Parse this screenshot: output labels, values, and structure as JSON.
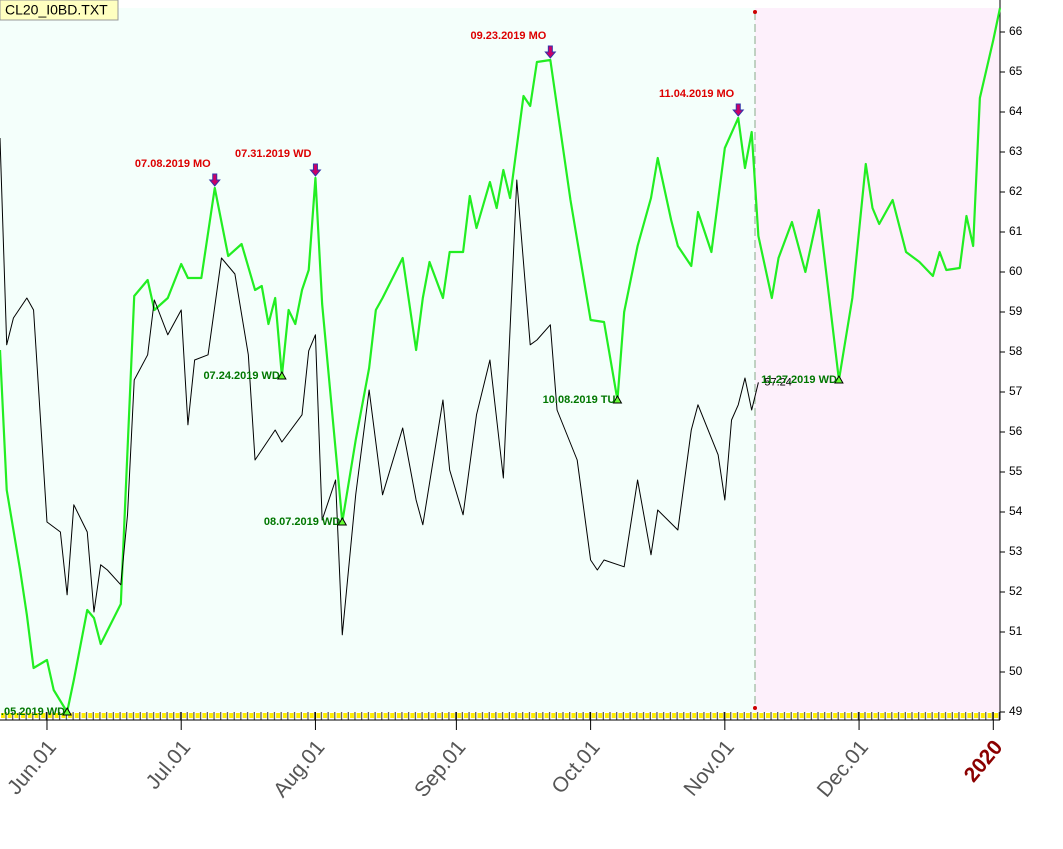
{
  "chart_data": {
    "type": "line",
    "title": "CL20_I0BD.TXT",
    "xlim": [
      0,
      149
    ],
    "ylim": [
      49,
      66.6
    ],
    "xticks": [
      {
        "value": 7,
        "label": "Jun.01"
      },
      {
        "value": 27,
        "label": "Jul.01"
      },
      {
        "value": 47,
        "label": "Aug.01"
      },
      {
        "value": 68,
        "label": "Sep.01"
      },
      {
        "value": 88,
        "label": "Oct.01"
      },
      {
        "value": 108,
        "label": "Nov.01"
      },
      {
        "value": 128,
        "label": "Dec.01"
      },
      {
        "value": 148,
        "label": "2020"
      }
    ],
    "yticks": [
      49,
      50,
      51,
      52,
      53,
      54,
      55,
      56,
      57,
      58,
      59,
      60,
      61,
      62,
      63,
      64,
      65,
      66
    ],
    "series": [
      {
        "color": "#22ee22",
        "x": [
          0,
          1,
          3,
          4,
          5,
          7,
          8,
          10,
          11,
          13,
          14,
          15,
          18,
          20,
          22,
          23,
          25,
          27,
          28,
          30,
          32,
          34,
          36,
          38,
          39,
          40,
          41,
          42,
          43,
          44,
          45,
          46,
          47,
          48,
          51,
          53,
          55,
          56,
          57,
          60,
          62,
          63,
          64,
          66,
          67,
          69,
          70,
          71,
          73,
          74,
          75,
          76,
          78,
          79,
          80,
          82,
          85,
          88,
          90,
          92,
          93,
          95,
          97,
          98,
          100,
          101,
          103,
          104,
          106,
          108,
          110,
          111,
          112,
          113,
          115,
          116,
          118,
          120,
          122,
          125,
          127,
          129,
          130,
          131,
          133,
          135,
          137,
          139,
          140,
          141,
          143,
          144,
          145,
          146,
          148,
          149
        ],
        "values": [
          58.05,
          54.55,
          52.55,
          51.43,
          50.1,
          50.3,
          49.55,
          49.0,
          49.8,
          51.55,
          51.35,
          50.7,
          51.7,
          59.4,
          59.8,
          59.05,
          59.35,
          60.2,
          59.85,
          59.85,
          62.1,
          60.4,
          60.7,
          59.55,
          59.65,
          58.7,
          59.35,
          57.4,
          59.05,
          58.7,
          59.55,
          60.05,
          62.35,
          59.2,
          53.75,
          55.8,
          57.6,
          59.05,
          59.35,
          60.35,
          58.05,
          59.35,
          60.25,
          59.35,
          60.5,
          60.5,
          61.9,
          61.1,
          62.25,
          61.6,
          62.55,
          61.85,
          64.4,
          64.15,
          65.25,
          65.3,
          61.8,
          58.8,
          58.75,
          56.8,
          59.0,
          60.65,
          61.85,
          62.85,
          61.3,
          60.65,
          60.15,
          61.5,
          60.5,
          63.1,
          63.85,
          62.6,
          63.5,
          60.9,
          59.35,
          60.35,
          61.25,
          60.0,
          61.55,
          57.3,
          59.35,
          62.7,
          61.6,
          61.2,
          61.8,
          60.5,
          60.25,
          59.9,
          60.5,
          60.05,
          60.1,
          61.4,
          60.65,
          64.35,
          65.8,
          66.6
        ]
      },
      {
        "color": "#000000",
        "x": [
          0,
          1,
          2,
          4,
          5,
          7,
          9,
          10,
          11,
          13,
          14,
          15,
          16,
          18,
          19,
          20,
          22,
          23,
          25,
          27,
          28,
          29,
          31,
          33,
          35,
          37,
          38,
          41,
          42,
          45,
          46,
          47,
          48,
          50,
          51,
          53,
          55,
          57,
          60,
          62,
          63,
          66,
          67,
          69,
          71,
          73,
          75,
          77,
          79,
          80,
          82,
          83,
          86,
          88,
          89,
          90,
          93,
          95,
          97,
          98,
          101,
          103,
          104,
          107,
          108,
          109,
          110,
          111,
          112,
          113
        ],
        "values": [
          63.35,
          58.18,
          58.85,
          59.35,
          59.05,
          53.75,
          53.5,
          51.93,
          54.18,
          53.5,
          51.5,
          52.68,
          52.55,
          52.18,
          53.93,
          57.3,
          57.93,
          59.3,
          58.43,
          59.05,
          56.18,
          57.8,
          57.93,
          60.35,
          59.95,
          57.93,
          55.3,
          56.05,
          55.75,
          56.43,
          58.03,
          58.43,
          53.8,
          54.8,
          50.93,
          54.43,
          57.05,
          54.43,
          56.1,
          54.3,
          53.68,
          56.8,
          55.05,
          53.93,
          56.43,
          57.8,
          54.85,
          62.3,
          58.18,
          58.3,
          58.68,
          56.55,
          55.3,
          52.8,
          52.55,
          52.8,
          52.63,
          54.8,
          52.93,
          54.05,
          53.55,
          56.05,
          56.68,
          55.43,
          54.3,
          56.3,
          56.68,
          57.35,
          56.55,
          57.24
        ],
        "value_labels": [
          null,
          null,
          null,
          null,
          null,
          null,
          null,
          null,
          null,
          null,
          null,
          null,
          null,
          null,
          null,
          null,
          null,
          null,
          null,
          null,
          null,
          null,
          null,
          null,
          null,
          null,
          null,
          null,
          null,
          null,
          null,
          null,
          null,
          null,
          null,
          null,
          null,
          null,
          null,
          null,
          null,
          null,
          null,
          null,
          null,
          null,
          null,
          null,
          null,
          null,
          null,
          null,
          null,
          null,
          null,
          null,
          null,
          null,
          null,
          null,
          null,
          null,
          null,
          null,
          null,
          null,
          null,
          null,
          null,
          "57.24"
        ]
      }
    ],
    "peaks": [
      {
        "label": "07.08.2019 MO",
        "x": 32,
        "y": 62.1
      },
      {
        "label": "07.31.2019 WD",
        "x": 47,
        "y": 62.35
      },
      {
        "label": "09.23.2019 MO",
        "x": 82,
        "y": 65.3
      },
      {
        "label": "11.04.2019 MO",
        "x": 110,
        "y": 63.85
      }
    ],
    "troughs": [
      {
        "label": ".05.2019 WD",
        "x": 10,
        "y": 49.0
      },
      {
        "label": "07.24.2019 WD",
        "x": 42,
        "y": 57.4
      },
      {
        "label": "08.07.2019 WD",
        "x": 51,
        "y": 53.75
      },
      {
        "label": "10.08.2019 TU",
        "x": 92,
        "y": 56.8
      },
      {
        "label": "11.27.2019 WD",
        "x": 125,
        "y": 57.3
      }
    ]
  }
}
